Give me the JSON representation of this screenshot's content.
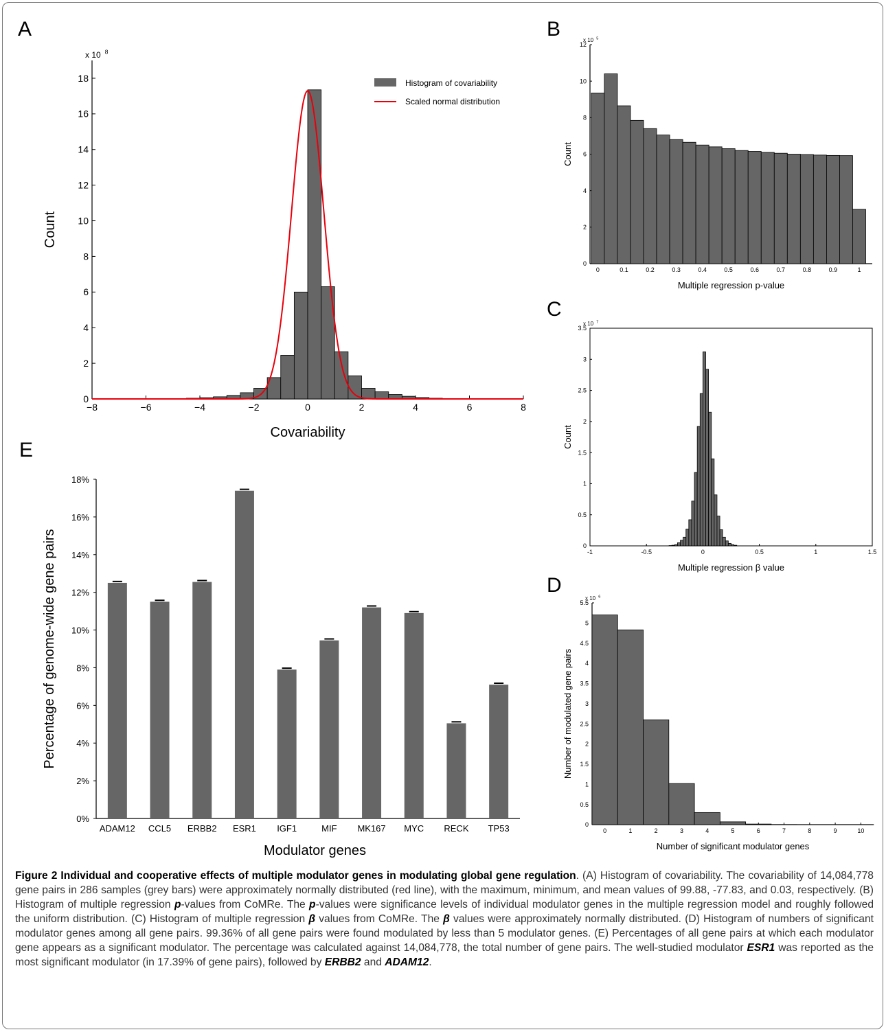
{
  "panels": {
    "A": {
      "letter": "A"
    },
    "B": {
      "letter": "B"
    },
    "C": {
      "letter": "C"
    },
    "D": {
      "letter": "D"
    },
    "E": {
      "letter": "E"
    }
  },
  "colors": {
    "bar": "#666666",
    "normal_curve": "#e8000b",
    "axis": "#000000"
  },
  "chart_data": [
    {
      "id": "A",
      "type": "bar",
      "xlabel": "Covariability",
      "ylabel": "Count",
      "multiplier": "x 10",
      "multiplier_exp": "8",
      "xlim": [
        -8,
        8
      ],
      "ylim": [
        0,
        19
      ],
      "xticks": [
        "−8",
        "−6",
        "−4",
        "−2",
        "0",
        "2",
        "4",
        "6",
        "8"
      ],
      "yticks": [
        "0",
        "2",
        "4",
        "6",
        "8",
        "10",
        "12",
        "14",
        "16",
        "18"
      ],
      "bin_width": 0.5,
      "bin_left_edges": [
        -5.0,
        -4.5,
        -4.0,
        -3.5,
        -3.0,
        -2.5,
        -2.0,
        -1.5,
        -1.0,
        -0.5,
        0.0,
        0.5,
        1.0,
        1.5,
        2.0,
        2.5,
        3.0,
        3.5,
        4.0,
        4.5,
        5.0
      ],
      "values": [
        0.02,
        0.04,
        0.07,
        0.12,
        0.2,
        0.35,
        0.6,
        1.2,
        2.45,
        6.0,
        17.35,
        6.3,
        2.65,
        1.3,
        0.6,
        0.4,
        0.25,
        0.15,
        0.08,
        0.04,
        0.02
      ],
      "normal_curve": {
        "peak": 17.3,
        "mean": 0,
        "sd": 0.6
      },
      "legend": [
        {
          "label": "Histogram of covariability",
          "kind": "bar"
        },
        {
          "label": "Scaled normal distribution",
          "kind": "line"
        }
      ],
      "legend_position": "top-right"
    },
    {
      "id": "B",
      "type": "bar",
      "xlabel": "Multiple regression p-value",
      "ylabel": "Count",
      "multiplier": "x 10",
      "multiplier_exp": "5",
      "xlim": [
        -0.03,
        1.05
      ],
      "ylim": [
        0,
        12
      ],
      "xticks": [
        "0",
        "0.1",
        "0.2",
        "0.3",
        "0.4",
        "0.5",
        "0.6",
        "0.7",
        "0.8",
        "0.9",
        "1"
      ],
      "yticks": [
        "0",
        "2",
        "4",
        "6",
        "8",
        "10",
        "12"
      ],
      "bin_width": 0.05,
      "bin_left_edges": [
        -0.025,
        0.025,
        0.075,
        0.125,
        0.175,
        0.225,
        0.275,
        0.325,
        0.375,
        0.425,
        0.475,
        0.525,
        0.575,
        0.625,
        0.675,
        0.725,
        0.775,
        0.825,
        0.875,
        0.925,
        0.975
      ],
      "values": [
        9.35,
        10.4,
        8.65,
        7.85,
        7.4,
        7.05,
        6.8,
        6.65,
        6.5,
        6.4,
        6.3,
        6.2,
        6.15,
        6.1,
        6.05,
        6.0,
        5.98,
        5.95,
        5.93,
        5.92,
        2.98
      ]
    },
    {
      "id": "C",
      "type": "bar",
      "xlabel": "Multiple regression β value",
      "ylabel": "Count",
      "multiplier": "x 10",
      "multiplier_exp": "7",
      "xlim": [
        -1,
        1.5
      ],
      "ylim": [
        0,
        3.5
      ],
      "xticks": [
        "-1",
        "-0.5",
        "0",
        "0.5",
        "1",
        "1.5"
      ],
      "yticks": [
        "0",
        "0.5",
        "1",
        "1.5",
        "2",
        "2.5",
        "3",
        "3.5"
      ],
      "bin_width": 0.025,
      "bin_left_edges": [
        -0.3,
        -0.275,
        -0.25,
        -0.225,
        -0.2,
        -0.175,
        -0.15,
        -0.125,
        -0.1,
        -0.075,
        -0.05,
        -0.025,
        0.0,
        0.025,
        0.05,
        0.075,
        0.1,
        0.125,
        0.15,
        0.175,
        0.2,
        0.225,
        0.25,
        0.275
      ],
      "values": [
        0.005,
        0.01,
        0.02,
        0.05,
        0.09,
        0.14,
        0.27,
        0.42,
        0.72,
        1.18,
        1.92,
        2.45,
        3.12,
        2.84,
        2.15,
        1.4,
        0.82,
        0.48,
        0.26,
        0.14,
        0.08,
        0.04,
        0.02,
        0.01
      ]
    },
    {
      "id": "D",
      "type": "bar",
      "xlabel": "Number of significant modulator genes",
      "ylabel": "Number of modulated gene pairs",
      "multiplier": "x 10",
      "multiplier_exp": "6",
      "xlim": [
        -0.5,
        10.5
      ],
      "ylim": [
        0,
        5.5
      ],
      "xticks": [
        "0",
        "1",
        "2",
        "3",
        "4",
        "5",
        "6",
        "7",
        "8",
        "9",
        "10"
      ],
      "yticks": [
        "0",
        "0.5",
        "1",
        "1.5",
        "2",
        "2.5",
        "3",
        "3.5",
        "4",
        "4.5",
        "5",
        "5.5"
      ],
      "categories": [
        "0",
        "1",
        "2",
        "3",
        "4",
        "5",
        "6",
        "7",
        "8",
        "9",
        "10"
      ],
      "values": [
        5.2,
        4.83,
        2.6,
        1.02,
        0.3,
        0.07,
        0.015,
        0.003,
        0.001,
        0.0005,
        0.0002
      ]
    },
    {
      "id": "E",
      "type": "bar",
      "xlabel": "Modulator genes",
      "ylabel": "Percentage of genome-wide gene pairs",
      "ylim": [
        0,
        18
      ],
      "yticks": [
        "0%",
        "2%",
        "4%",
        "6%",
        "8%",
        "10%",
        "12%",
        "14%",
        "16%",
        "18%"
      ],
      "categories": [
        "ADAM12",
        "CCL5",
        "ERBB2",
        "ESR1",
        "IGF1",
        "MIF",
        "MK167",
        "MYC",
        "RECK",
        "TP53"
      ],
      "values": [
        12.5,
        11.5,
        12.55,
        17.39,
        7.9,
        9.45,
        11.2,
        10.9,
        5.05,
        7.1
      ],
      "errors": [
        0.04,
        0.04,
        0.04,
        0.04,
        0.04,
        0.04,
        0.04,
        0.04,
        0.04,
        0.04
      ]
    }
  ],
  "caption": {
    "title": "Figure 2 Individual and cooperative effects of multiple modulator genes in modulating global gene regulation",
    "t1": ". (A) Histogram of covariability. The covariability of 14,084,778 gene pairs in 286 samples (grey bars) were approximately normally distributed (red line), with the maximum, minimum, and mean values of 99.88, -77.83, and 0.03, respectively. (B) Histogram of multiple regression ",
    "p1": "p",
    "t2": "-values from CoMRe. The ",
    "p2": "p",
    "t3": "-values were significance levels of individual modulator genes in the multiple regression model and roughly followed the uniform distribution. (C) Histogram of multiple regression ",
    "b1": "β",
    "t4": " values from CoMRe. The ",
    "b2": "β",
    "t5": " values were approximately normally distributed. (D) Histogram of numbers of significant modulator genes among all gene pairs. 99.36% of all gene pairs were found modulated by less than 5 modulator genes. (E) Percentages of all gene pairs at which each modulator gene appears as a significant modulator. The percentage was calculated against 14,084,778, the total number of gene pairs. The well-studied modulator ",
    "g1": "ESR1",
    "t6": " was reported as the most significant modulator (in 17.39% of gene pairs), followed by ",
    "g2": "ERBB2",
    "t7": " and ",
    "g3": "ADAM12",
    "t8": "."
  }
}
